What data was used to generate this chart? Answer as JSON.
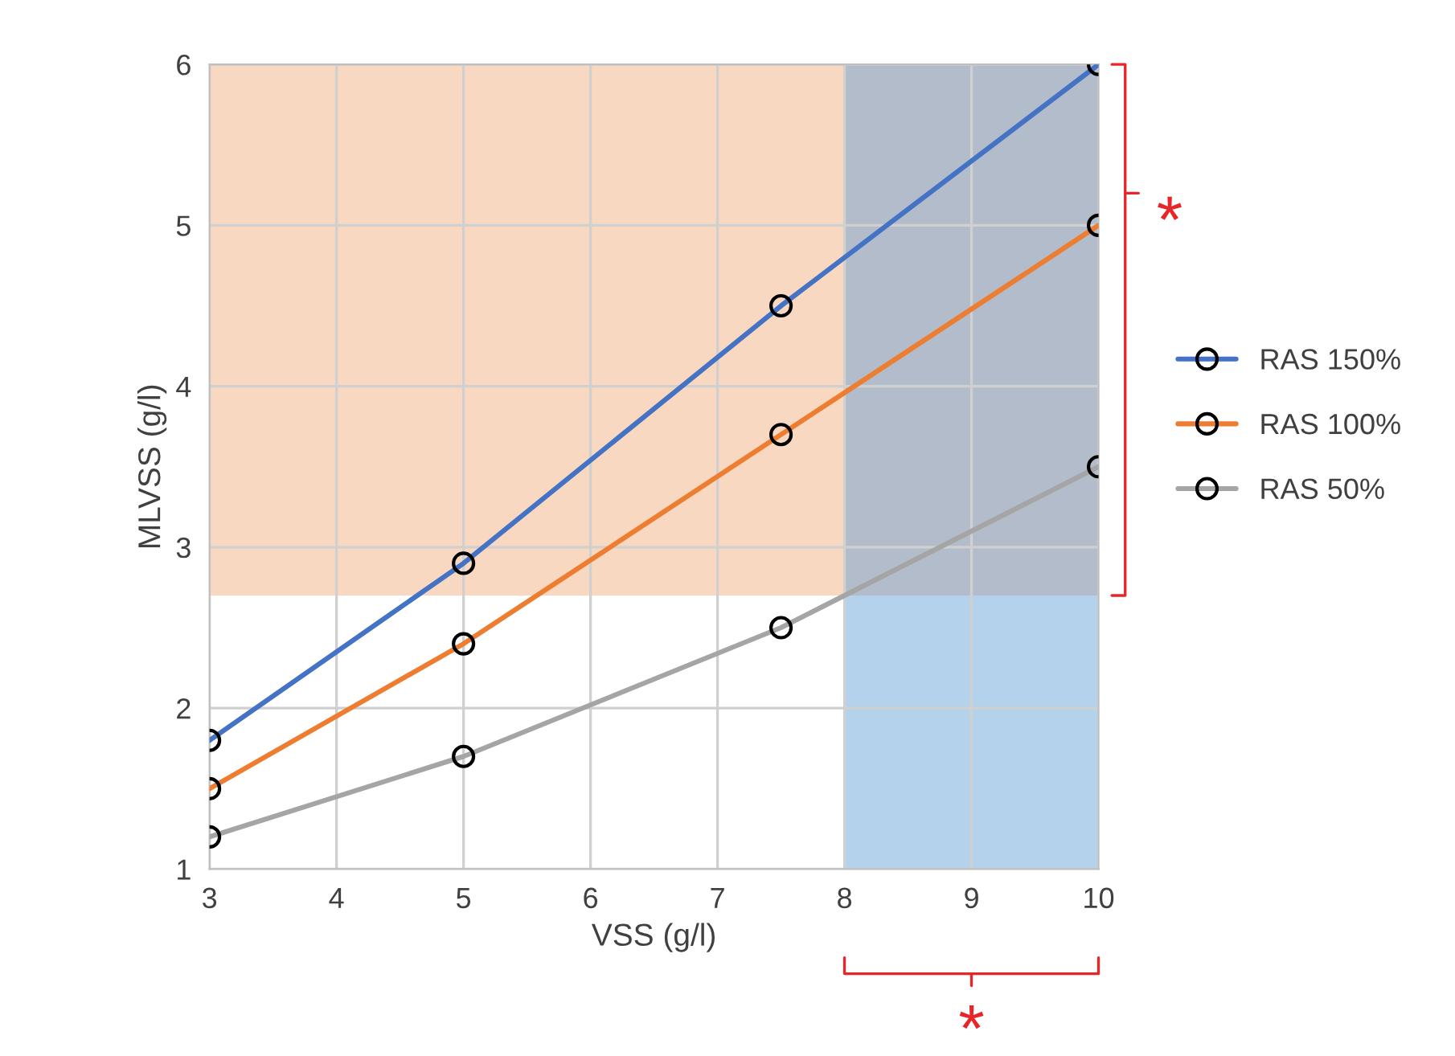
{
  "chart_data": {
    "type": "line",
    "xlabel": "VSS (g/l)",
    "ylabel": "MLVSS (g/l)",
    "x": [
      3,
      5,
      7.5,
      10
    ],
    "series": [
      {
        "name": "RAS 150%",
        "color": "#4472c4",
        "values": [
          1.8,
          2.9,
          4.5,
          6
        ]
      },
      {
        "name": "RAS 100%",
        "color": "#ed7d31",
        "values": [
          1.5,
          2.4,
          3.7,
          5
        ]
      },
      {
        "name": "RAS 50%",
        "color": "#a5a5a5",
        "values": [
          1.2,
          1.7,
          2.5,
          3.5
        ]
      }
    ],
    "xlim": [
      3,
      10
    ],
    "xticks": [
      3,
      4,
      5,
      6,
      7,
      8,
      9,
      10
    ],
    "ylim": [
      1,
      6
    ],
    "yticks": [
      1,
      2,
      3,
      4,
      5,
      6
    ],
    "bands": [
      {
        "axis": "y",
        "from": 2.7,
        "to": 6,
        "color": "#f4b183"
      },
      {
        "axis": "x",
        "from": 8,
        "to": 10,
        "color": "#5b9bd5"
      }
    ],
    "annotations": [
      "*",
      "*"
    ],
    "grid": true,
    "legend": "right",
    "marker": "circle",
    "line_style": "solid"
  }
}
